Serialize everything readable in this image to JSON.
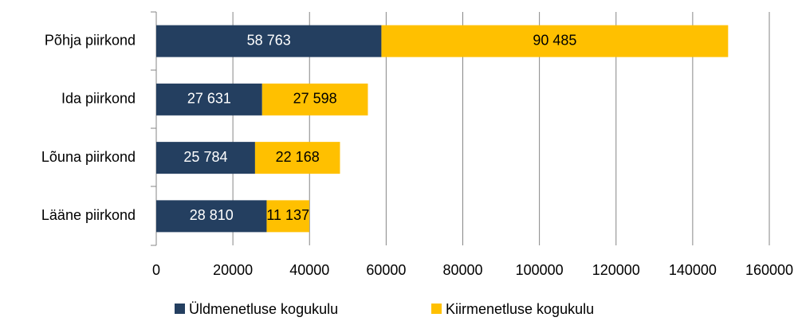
{
  "chart_data": {
    "type": "stacked_bar_horizontal",
    "categories": [
      "Põhja piirkond",
      "Ida piirkond",
      "Lõuna piirkond",
      "Lääne piirkond"
    ],
    "series": [
      {
        "name": "Üldmenetluse kogukulu",
        "color": "#243f60",
        "values": [
          58763,
          27631,
          25784,
          28810
        ],
        "value_labels": [
          "58 763",
          "27 631",
          "25 784",
          "28 810"
        ]
      },
      {
        "name": "Kiirmenetluse kogukulu",
        "color": "#ffc000",
        "values": [
          90485,
          27598,
          22168,
          11137
        ],
        "value_labels": [
          "90 485",
          "27 598",
          "22 168",
          "11 137"
        ]
      }
    ],
    "xlim": [
      0,
      160000
    ],
    "xticks": [
      0,
      20000,
      40000,
      60000,
      80000,
      100000,
      120000,
      140000,
      160000
    ],
    "grid": true,
    "legend": "bottom"
  }
}
